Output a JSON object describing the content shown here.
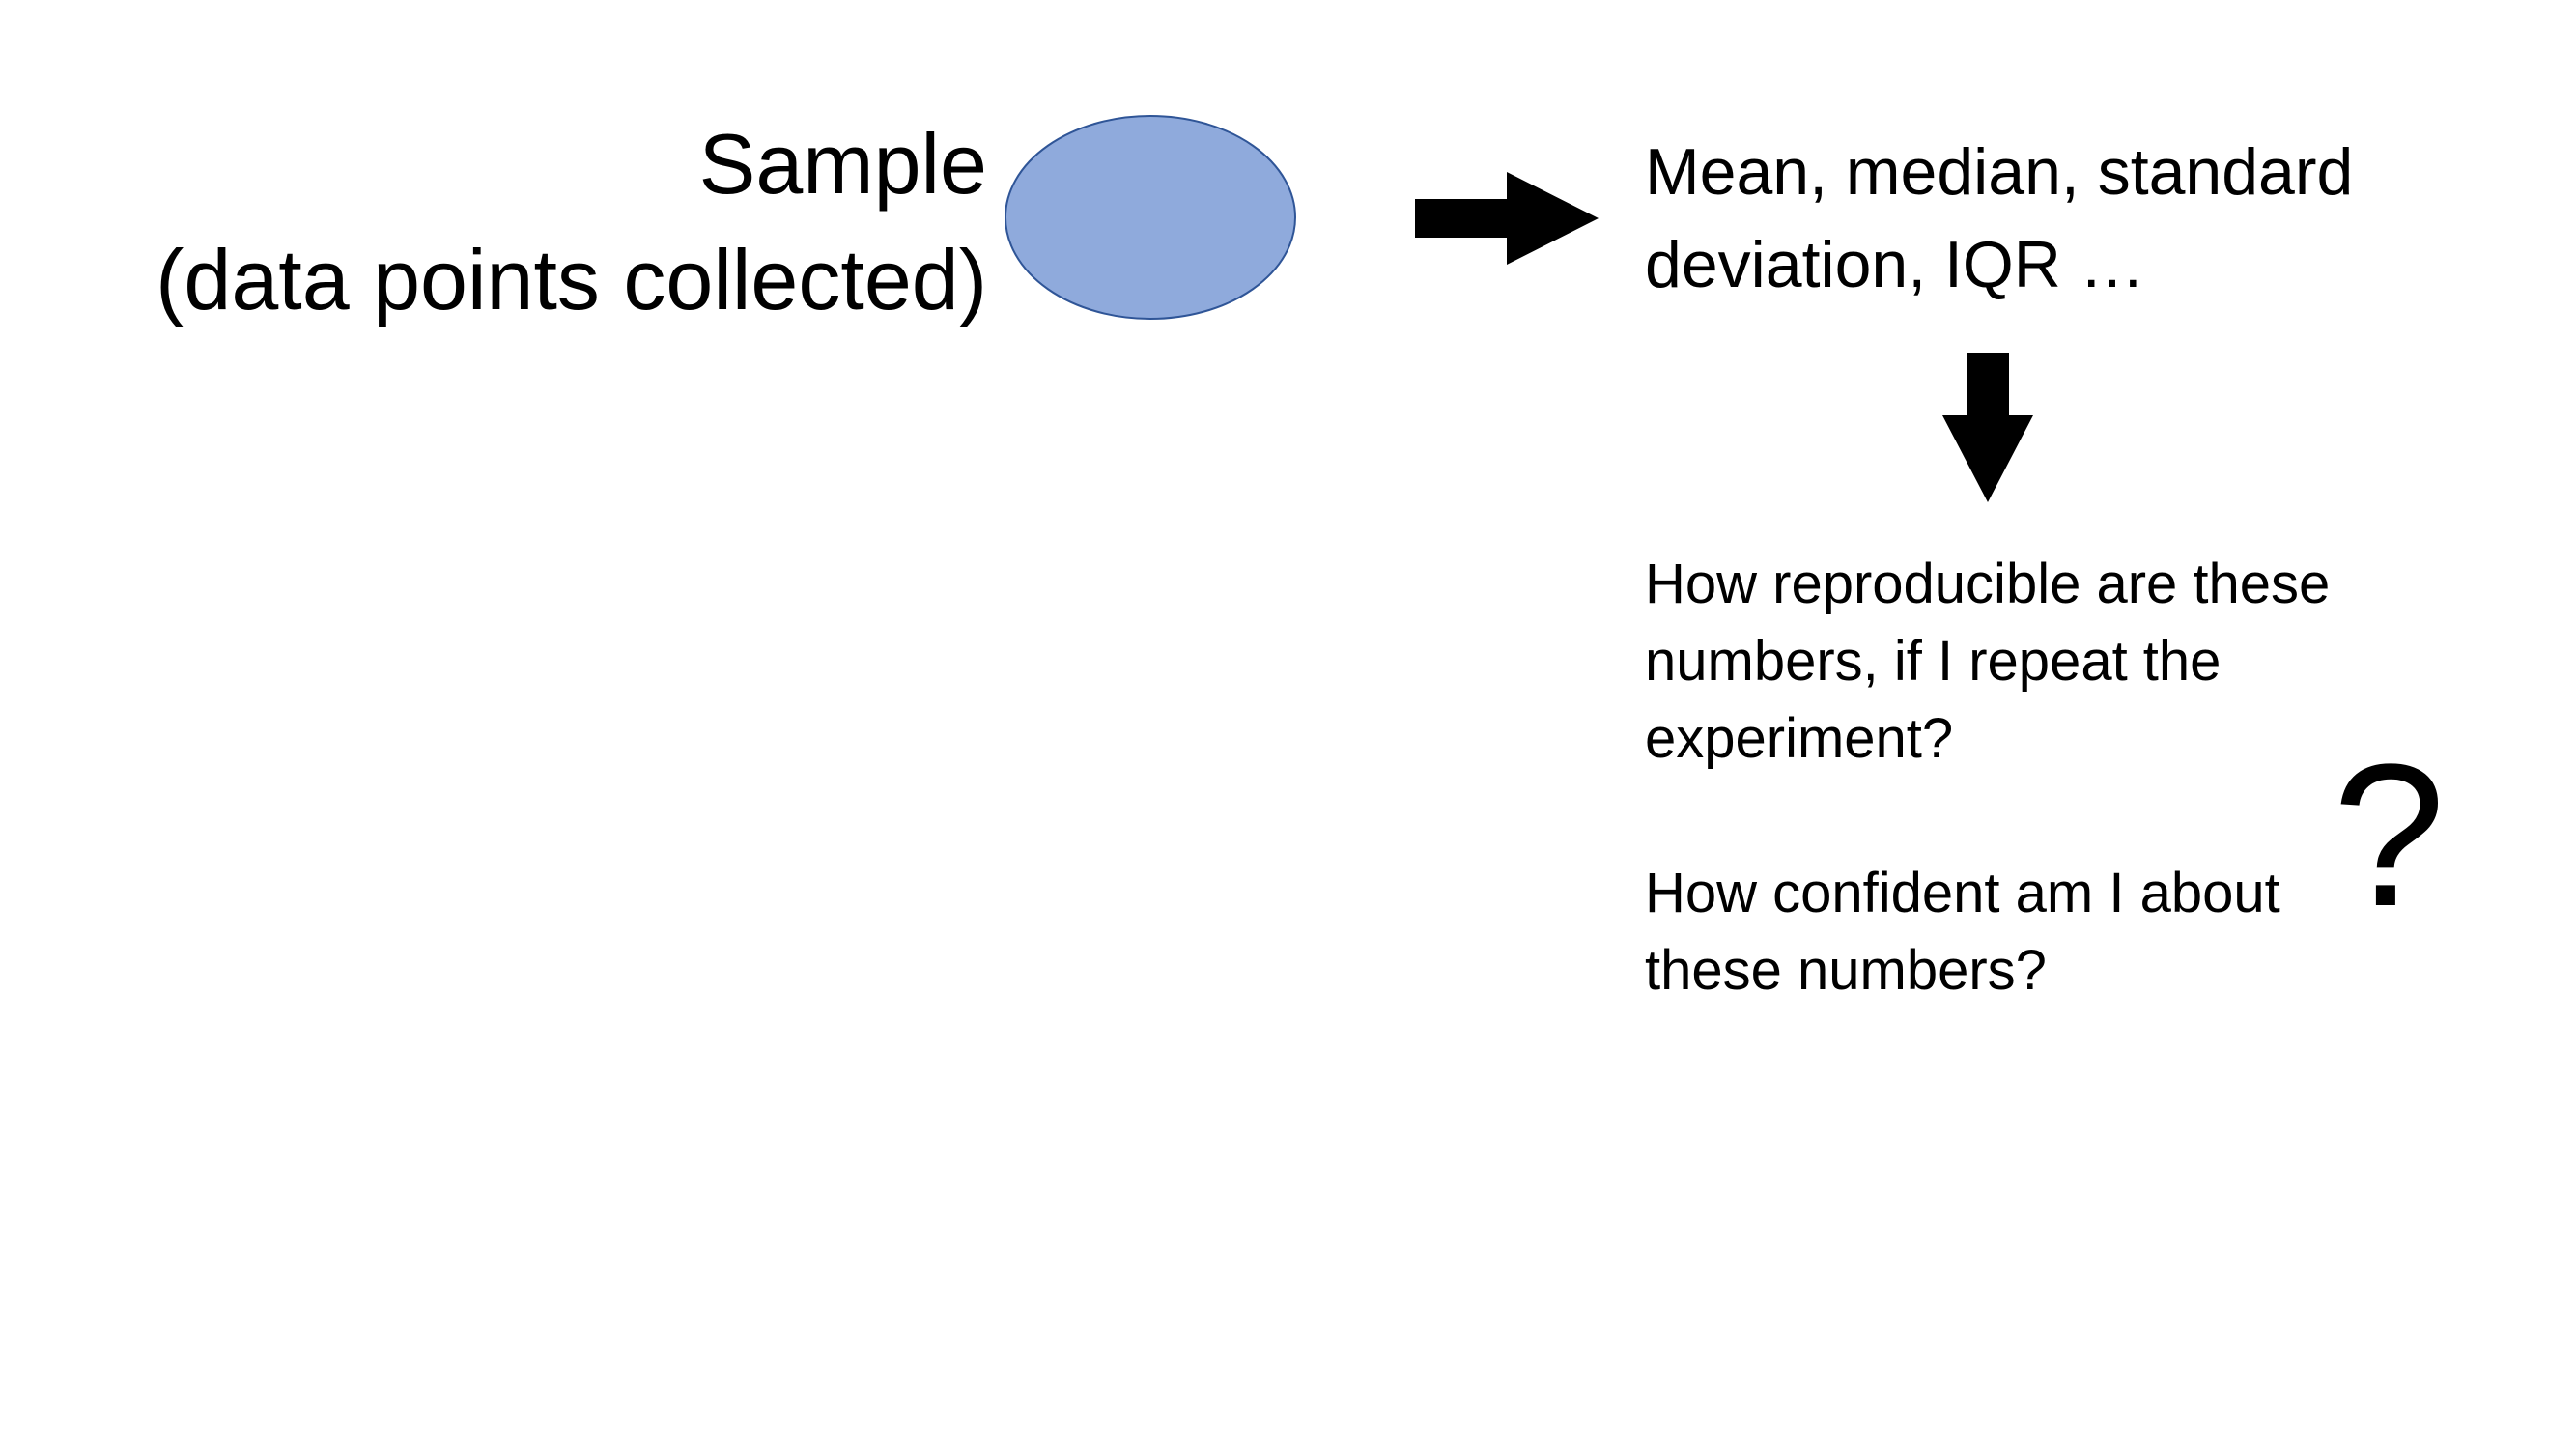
{
  "sample": {
    "title": "Sample",
    "subtitle": "(data points collected)"
  },
  "stats": {
    "line1": "Mean, median, standard",
    "line2": "deviation, IQR …"
  },
  "questions": {
    "q1_line1": "How reproducible are these",
    "q1_line2": "numbers, if I repeat the",
    "q1_line3": "experiment?",
    "q2_line1": "How confident am I about",
    "q2_line2": "these numbers?"
  },
  "question_mark": "?",
  "colors": {
    "ellipse_fill": "#8faadc",
    "ellipse_stroke": "#2f5597",
    "arrow": "#000000"
  },
  "icons": {
    "arrow_right": "arrow-right-icon",
    "arrow_down": "arrow-down-icon"
  }
}
